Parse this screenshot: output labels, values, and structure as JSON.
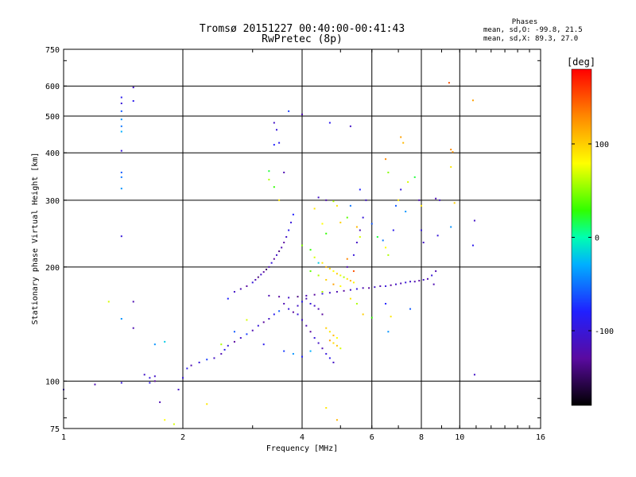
{
  "header": {
    "title_line1": "Tromsø 20151227 00:40:00-00:41:43",
    "title_line2": "RwPretec (8p)",
    "stats_heading": "Phases",
    "stats_o": "mean, sd,O: -99.8, 21.5",
    "stats_x": "mean, sd,X:  89.3, 27.0"
  },
  "colorbar": {
    "unit_label": "[deg]",
    "ticks": [
      {
        "value": 100,
        "label": "100"
      },
      {
        "value": 0,
        "label": "0"
      },
      {
        "value": -100,
        "label": "-100"
      }
    ],
    "range": [
      -180,
      180
    ]
  },
  "chart_data": {
    "type": "scatter",
    "xlabel": "Frequency [MHz]",
    "ylabel": "Stationary phase Virtual Height [km]",
    "x_scale": "log",
    "y_scale": "log",
    "xlim": [
      1,
      16
    ],
    "ylim": [
      75,
      750
    ],
    "x_ticks": [
      {
        "value": 1,
        "label": "1"
      },
      {
        "value": 2,
        "label": "2"
      },
      {
        "value": 4,
        "label": "4"
      },
      {
        "value": 6,
        "label": "6"
      },
      {
        "value": 8,
        "label": "8"
      },
      {
        "value": 10,
        "label": "10"
      },
      {
        "value": 16,
        "label": "16"
      }
    ],
    "x_gridlines": [
      2,
      4,
      6,
      8,
      10
    ],
    "y_ticks": [
      {
        "value": 75,
        "label": "75"
      },
      {
        "value": 100,
        "label": "100"
      },
      {
        "value": 200,
        "label": "200"
      },
      {
        "value": 300,
        "label": "300"
      },
      {
        "value": 400,
        "label": "400"
      },
      {
        "value": 500,
        "label": "500"
      },
      {
        "value": 600,
        "label": "600"
      },
      {
        "value": 750,
        "label": "750"
      }
    ],
    "y_gridlines": [
      100,
      200,
      300,
      400,
      500,
      600
    ],
    "grid": true,
    "series": [
      {
        "points": [
          [
            1.0,
            95,
            -110
          ],
          [
            1.2,
            98,
            -120
          ],
          [
            1.3,
            162,
            70
          ],
          [
            1.4,
            560,
            -90
          ],
          [
            1.4,
            540,
            -100
          ],
          [
            1.4,
            515,
            -60
          ],
          [
            1.4,
            490,
            -40
          ],
          [
            1.4,
            470,
            -50
          ],
          [
            1.4,
            455,
            -30
          ],
          [
            1.4,
            405,
            -100
          ],
          [
            1.4,
            355,
            -60
          ],
          [
            1.4,
            345,
            -50
          ],
          [
            1.4,
            322,
            -40
          ],
          [
            1.4,
            241,
            -100
          ],
          [
            1.4,
            146,
            -40
          ],
          [
            1.4,
            99,
            -100
          ],
          [
            1.5,
            595,
            -110
          ],
          [
            1.5,
            548,
            -90
          ],
          [
            1.5,
            162,
            -120
          ],
          [
            1.5,
            138,
            -120
          ],
          [
            1.6,
            104,
            -110
          ],
          [
            1.65,
            102,
            -100
          ],
          [
            1.65,
            99,
            -90
          ],
          [
            1.7,
            103,
            -110
          ],
          [
            1.7,
            100,
            -130
          ],
          [
            1.75,
            88,
            -120
          ],
          [
            1.7,
            125,
            -40
          ],
          [
            1.8,
            127,
            -20
          ],
          [
            1.8,
            79,
            80
          ],
          [
            1.9,
            77,
            70
          ],
          [
            1.95,
            95,
            -110
          ],
          [
            2.0,
            102,
            -100
          ],
          [
            2.05,
            108,
            -90
          ],
          [
            2.1,
            110,
            -120
          ],
          [
            2.2,
            112,
            -100
          ],
          [
            2.3,
            114,
            -70
          ],
          [
            2.3,
            87,
            90
          ],
          [
            2.4,
            115,
            -110
          ],
          [
            2.5,
            118,
            -120
          ],
          [
            2.55,
            121,
            -90
          ],
          [
            2.6,
            124,
            -100
          ],
          [
            2.7,
            127,
            -130
          ],
          [
            2.8,
            130,
            -110
          ],
          [
            2.9,
            133,
            -70
          ],
          [
            3.0,
            136,
            -120
          ],
          [
            3.1,
            140,
            -100
          ],
          [
            3.2,
            143,
            -130
          ],
          [
            3.3,
            146,
            -110
          ],
          [
            3.4,
            150,
            -90
          ],
          [
            3.5,
            153,
            -60
          ],
          [
            2.6,
            165,
            -80
          ],
          [
            2.7,
            172,
            -110
          ],
          [
            2.8,
            175,
            -120
          ],
          [
            2.9,
            178,
            -130
          ],
          [
            3.0,
            182,
            -100
          ],
          [
            3.05,
            185,
            -120
          ],
          [
            3.1,
            188,
            -140
          ],
          [
            3.15,
            191,
            -110
          ],
          [
            3.2,
            194,
            -130
          ],
          [
            3.25,
            197,
            -150
          ],
          [
            3.3,
            200,
            -120
          ],
          [
            3.35,
            205,
            -100
          ],
          [
            3.4,
            210,
            -130
          ],
          [
            3.45,
            215,
            -110
          ],
          [
            3.5,
            220,
            -140
          ],
          [
            3.55,
            225,
            -120
          ],
          [
            3.6,
            232,
            -130
          ],
          [
            3.65,
            240,
            -110
          ],
          [
            3.7,
            250,
            -90
          ],
          [
            3.75,
            262,
            -100
          ],
          [
            3.8,
            275,
            -80
          ],
          [
            3.3,
            168,
            -120
          ],
          [
            3.5,
            167,
            -130
          ],
          [
            3.7,
            166,
            -110
          ],
          [
            3.9,
            167,
            -140
          ],
          [
            4.1,
            168,
            -120
          ],
          [
            4.3,
            169,
            -130
          ],
          [
            4.5,
            170,
            -100
          ],
          [
            4.7,
            171,
            -110
          ],
          [
            4.9,
            172,
            -120
          ],
          [
            5.1,
            173,
            -130
          ],
          [
            5.3,
            174,
            -110
          ],
          [
            5.5,
            175,
            -100
          ],
          [
            5.7,
            176,
            -120
          ],
          [
            5.9,
            176,
            -130
          ],
          [
            6.1,
            177,
            -110
          ],
          [
            6.3,
            178,
            -120
          ],
          [
            6.5,
            178,
            -100
          ],
          [
            6.7,
            179,
            -130
          ],
          [
            6.9,
            180,
            -110
          ],
          [
            7.1,
            181,
            -120
          ],
          [
            7.3,
            182,
            -100
          ],
          [
            7.5,
            183,
            -110
          ],
          [
            7.7,
            183,
            -120
          ],
          [
            7.9,
            184,
            -130
          ],
          [
            8.1,
            185,
            -110
          ],
          [
            8.3,
            186,
            -120
          ],
          [
            8.5,
            190,
            -100
          ],
          [
            8.7,
            195,
            -120
          ],
          [
            3.4,
            480,
            -110
          ],
          [
            3.45,
            460,
            -100
          ],
          [
            3.5,
            425,
            -90
          ],
          [
            3.4,
            420,
            -80
          ],
          [
            3.7,
            515,
            -70
          ],
          [
            4.0,
            505,
            -120
          ],
          [
            4.7,
            480,
            -90
          ],
          [
            5.3,
            470,
            -110
          ],
          [
            3.3,
            358,
            20
          ],
          [
            3.3,
            340,
            60
          ],
          [
            3.4,
            325,
            30
          ],
          [
            3.5,
            300,
            90
          ],
          [
            3.6,
            355,
            -120
          ],
          [
            4.4,
            305,
            -110
          ],
          [
            4.6,
            300,
            -120
          ],
          [
            4.8,
            298,
            60
          ],
          [
            4.9,
            290,
            90
          ],
          [
            4.0,
            228,
            50
          ],
          [
            4.2,
            222,
            30
          ],
          [
            4.3,
            212,
            70
          ],
          [
            4.5,
            205,
            90
          ],
          [
            4.6,
            200,
            110
          ],
          [
            4.7,
            198,
            95
          ],
          [
            4.8,
            195,
            80
          ],
          [
            4.9,
            192,
            100
          ],
          [
            5.0,
            190,
            75
          ],
          [
            5.1,
            188,
            60
          ],
          [
            5.2,
            186,
            90
          ],
          [
            5.3,
            184,
            110
          ],
          [
            5.4,
            182,
            85
          ],
          [
            4.2,
            195,
            40
          ],
          [
            4.4,
            190,
            60
          ],
          [
            4.6,
            185,
            100
          ],
          [
            4.8,
            180,
            120
          ],
          [
            5.0,
            178,
            80
          ],
          [
            4.6,
            138,
            100
          ],
          [
            4.7,
            135,
            90
          ],
          [
            4.8,
            132,
            110
          ],
          [
            4.9,
            130,
            80
          ],
          [
            4.7,
            128,
            120
          ],
          [
            4.8,
            126,
            95
          ],
          [
            4.9,
            124,
            105
          ],
          [
            5.0,
            122,
            70
          ],
          [
            4.6,
            85,
            90
          ],
          [
            3.9,
            150,
            -100
          ],
          [
            4.0,
            145,
            -110
          ],
          [
            4.1,
            140,
            -120
          ],
          [
            4.2,
            135,
            -130
          ],
          [
            4.3,
            130,
            -100
          ],
          [
            4.4,
            126,
            -110
          ],
          [
            4.5,
            122,
            -120
          ],
          [
            4.6,
            118,
            -100
          ],
          [
            4.7,
            115,
            -90
          ],
          [
            4.8,
            112,
            -110
          ],
          [
            3.6,
            160,
            -120
          ],
          [
            3.7,
            155,
            -100
          ],
          [
            3.8,
            152,
            -130
          ],
          [
            3.9,
            158,
            -110
          ],
          [
            4.0,
            162,
            -90
          ],
          [
            4.1,
            165,
            -120
          ],
          [
            4.2,
            160,
            -100
          ],
          [
            4.3,
            158,
            -110
          ],
          [
            4.4,
            155,
            -120
          ],
          [
            4.5,
            150,
            -130
          ],
          [
            5.2,
            200,
            -120
          ],
          [
            5.4,
            215,
            -100
          ],
          [
            5.5,
            232,
            -110
          ],
          [
            5.6,
            250,
            -120
          ],
          [
            5.7,
            270,
            -100
          ],
          [
            5.8,
            300,
            -110
          ],
          [
            5.6,
            320,
            -80
          ],
          [
            6.0,
            260,
            -60
          ],
          [
            6.2,
            240,
            20
          ],
          [
            6.4,
            235,
            -50
          ],
          [
            6.5,
            225,
            80
          ],
          [
            6.6,
            215,
            60
          ],
          [
            6.8,
            250,
            -90
          ],
          [
            6.9,
            290,
            -60
          ],
          [
            7.0,
            300,
            90
          ],
          [
            7.1,
            320,
            -100
          ],
          [
            7.3,
            280,
            -40
          ],
          [
            7.4,
            335,
            70
          ],
          [
            7.1,
            440,
            120
          ],
          [
            7.2,
            425,
            110
          ],
          [
            6.5,
            385,
            130
          ],
          [
            6.6,
            355,
            50
          ],
          [
            7.7,
            345,
            20
          ],
          [
            7.9,
            300,
            -120
          ],
          [
            8.0,
            290,
            90
          ],
          [
            8.0,
            250,
            -100
          ],
          [
            8.1,
            232,
            -110
          ],
          [
            8.7,
            303,
            -120
          ],
          [
            8.9,
            300,
            -110
          ],
          [
            8.8,
            242,
            -100
          ],
          [
            9.4,
            612,
            150
          ],
          [
            9.5,
            408,
            130
          ],
          [
            9.6,
            402,
            125
          ],
          [
            9.5,
            367,
            90
          ],
          [
            9.7,
            295,
            100
          ],
          [
            9.5,
            255,
            -40
          ],
          [
            10.8,
            550,
            120
          ],
          [
            10.9,
            265,
            -110
          ],
          [
            10.8,
            228,
            -90
          ],
          [
            10.9,
            104,
            -110
          ],
          [
            8.6,
            180,
            -120
          ],
          [
            6.7,
            148,
            90
          ],
          [
            7.5,
            155,
            -60
          ],
          [
            6.5,
            160,
            -80
          ],
          [
            6.6,
            135,
            -40
          ],
          [
            4.9,
            79,
            110
          ],
          [
            2.9,
            145,
            70
          ],
          [
            2.5,
            125,
            60
          ],
          [
            2.7,
            135,
            -60
          ],
          [
            3.2,
            125,
            -90
          ],
          [
            3.6,
            120,
            -70
          ],
          [
            3.8,
            118,
            -40
          ],
          [
            4.0,
            116,
            -80
          ],
          [
            4.2,
            120,
            -30
          ],
          [
            4.5,
            172,
            60
          ],
          [
            4.4,
            205,
            -20
          ],
          [
            4.6,
            245,
            30
          ],
          [
            4.5,
            260,
            80
          ],
          [
            4.3,
            285,
            90
          ],
          [
            5.0,
            262,
            100
          ],
          [
            5.2,
            270,
            40
          ],
          [
            5.3,
            290,
            -50
          ],
          [
            5.5,
            255,
            110
          ],
          [
            5.6,
            240,
            70
          ],
          [
            5.2,
            210,
            130
          ],
          [
            5.4,
            195,
            150
          ],
          [
            5.3,
            165,
            90
          ],
          [
            5.5,
            160,
            60
          ],
          [
            5.7,
            150,
            100
          ],
          [
            6.0,
            147,
            30
          ]
        ]
      }
    ]
  }
}
